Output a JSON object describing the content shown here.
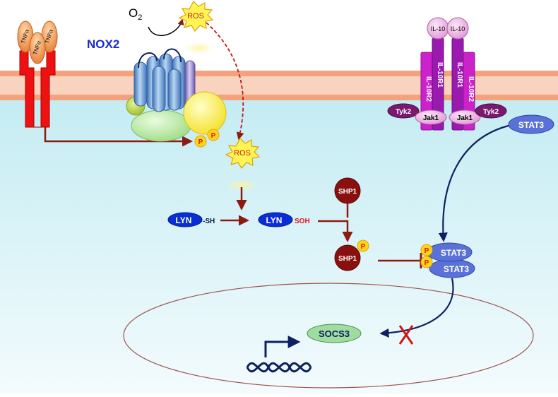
{
  "labels": {
    "nox2": "NOX2",
    "o2_main": "O",
    "o2_sub": "2",
    "ros_top": "ROS",
    "ros_mid": "ROS",
    "tnf": "TNFα",
    "lyn": "LYN",
    "lyn_sh": "-SH",
    "lyn_soh": "SOH",
    "shp1": "SHP1",
    "shp1_p": "SHP1",
    "p": "P",
    "stat3_free": "STAT3",
    "stat3_upper": "STAT3",
    "stat3_lower": "STAT3",
    "il10": "IL-10",
    "il10r1": "IL-10R1",
    "il10r2": "IL-10R2",
    "tyk2": "Tyk2",
    "jak1": "Jak1",
    "socs3": "SOCS3"
  },
  "colors": {
    "extracellular": "#ffffff",
    "cytoplasm_top": "#c4ecf3",
    "cytoplasm_bottom": "#f3fbfd",
    "membrane": "#f4a27c",
    "membrane_core": "#f9d3bd",
    "arrow": "#8b1a10",
    "signal_arrow": "#0e2060",
    "tnf_receptor": "#ee1111",
    "lyn": "#0a2ed6",
    "shp1": "#8a1010",
    "stat3": "#5a72d8",
    "il10r": "#cc22cc",
    "tyk2": "#7a1a6e",
    "jak1": "#e8a6dc",
    "socs3": "#9fdca0",
    "phospho": "#ffd51a",
    "ros": "#fff455",
    "inhibit_x": "#d01515"
  },
  "icons": [
    "tnf-receptor-icon",
    "nox2-complex-icon",
    "ros-burst-icon",
    "il10-receptor-icon",
    "dna-helix-icon",
    "transcription-arrow-icon",
    "nucleus-icon"
  ]
}
